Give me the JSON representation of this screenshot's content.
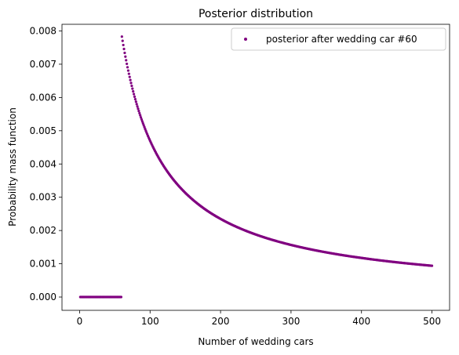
{
  "chart_data": {
    "type": "scatter",
    "title": "Posterior distribution",
    "xlabel": "Number of wedding cars",
    "ylabel": "Probability mass function",
    "xlim": [
      -25,
      525
    ],
    "ylim": [
      -0.0004,
      0.0082
    ],
    "xticks": [
      0,
      100,
      200,
      300,
      400,
      500
    ],
    "yticks": [
      0.0,
      0.001,
      0.002,
      0.003,
      0.004,
      0.005,
      0.006,
      0.007,
      0.008
    ],
    "ytick_labels": [
      "0.000",
      "0.001",
      "0.002",
      "0.003",
      "0.004",
      "0.005",
      "0.006",
      "0.007",
      "0.008"
    ],
    "grid": false,
    "legend_position": "top-right",
    "series": [
      {
        "name": "posterior after wedding car #60",
        "color": "#800080",
        "marker": "dot",
        "x_range": [
          1,
          500
        ],
        "zero_below": 60,
        "peak_at_60": 0.00783,
        "value_at_500": 0.00094
      }
    ]
  }
}
